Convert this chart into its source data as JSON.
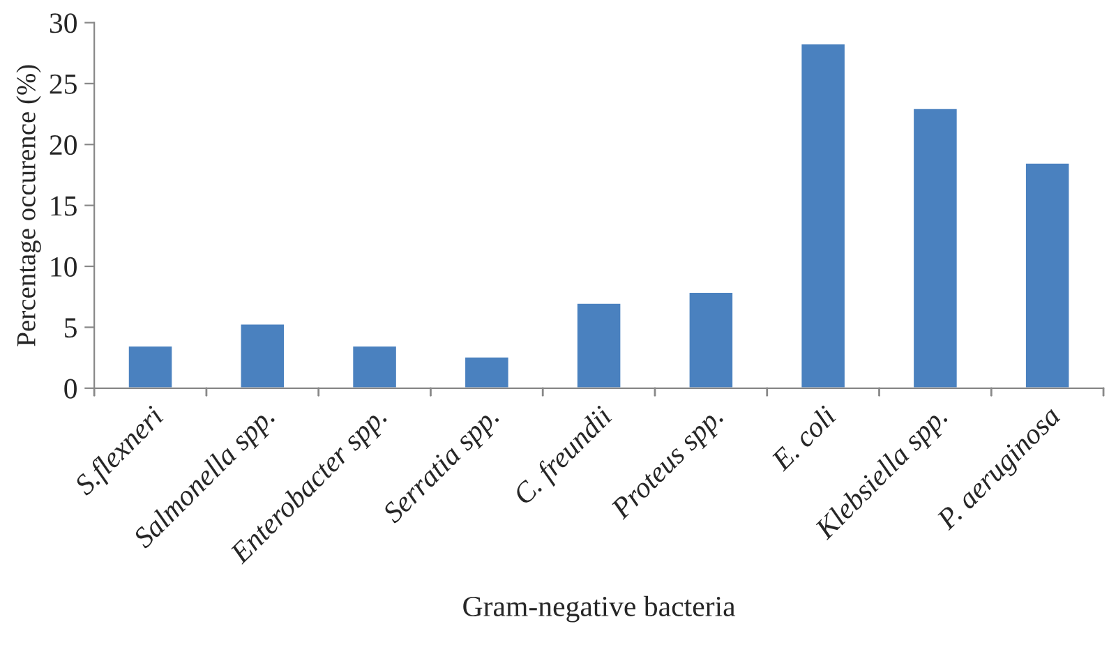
{
  "chart_data": {
    "type": "bar",
    "xlabel": "Gram-negative bacteria",
    "ylabel": "Percentage occurence (%)",
    "categories": [
      "S.flexneri",
      "Salmonella spp.",
      "Enterobacter spp.",
      "Serratia spp.",
      "C. freundii",
      "Proteus spp.",
      "E. coli",
      "Klebsiella spp.",
      "P. aeruginosa"
    ],
    "values": [
      3.5,
      5.3,
      3.5,
      2.6,
      7.0,
      7.9,
      28.3,
      23.0,
      18.5
    ],
    "color": "#4a81bf",
    "ylim": [
      0,
      30
    ],
    "yticks": [
      0,
      5,
      10,
      15,
      20,
      25,
      30
    ],
    "grid": false
  }
}
